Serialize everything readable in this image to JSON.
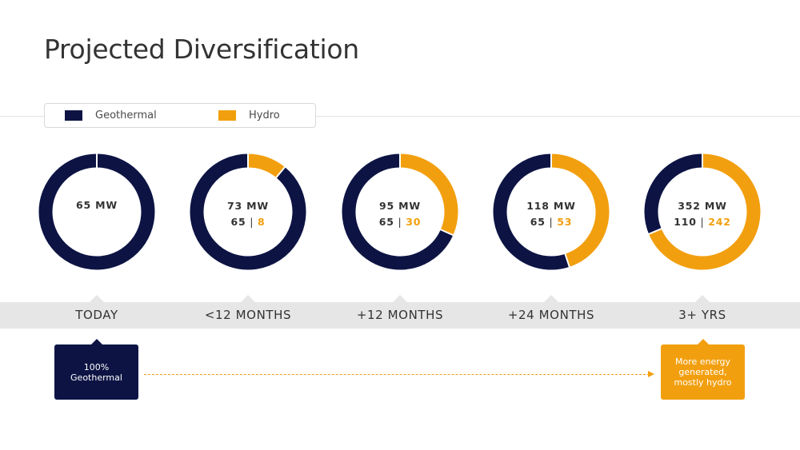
{
  "title": "Projected Diversification",
  "legend": {
    "geothermal": "Geothermal",
    "hydro": "Hydro"
  },
  "colors": {
    "geothermal": "#0d1444",
    "hydro": "#f29f0f"
  },
  "chart_data": {
    "type": "pie",
    "variant": "donut",
    "series_names": [
      "Geothermal",
      "Hydro"
    ],
    "charts": [
      {
        "period": "TODAY",
        "total_label": "65 MW",
        "geothermal": 65,
        "hydro": 0
      },
      {
        "period": "<12 MONTHS",
        "total_label": "73 MW",
        "geothermal": 65,
        "hydro": 8
      },
      {
        "period": "+12 MONTHS",
        "total_label": "95 MW",
        "geothermal": 65,
        "hydro": 30
      },
      {
        "period": "+24 MONTHS",
        "total_label": "118 MW",
        "geothermal": 65,
        "hydro": 53
      },
      {
        "period": "3+ YRS",
        "total_label": "352 MW",
        "geothermal": 110,
        "hydro": 242
      }
    ]
  },
  "callouts": {
    "today": "100%\nGeothermal",
    "future": "More energy\ngenerated,\nmostly hydro"
  }
}
